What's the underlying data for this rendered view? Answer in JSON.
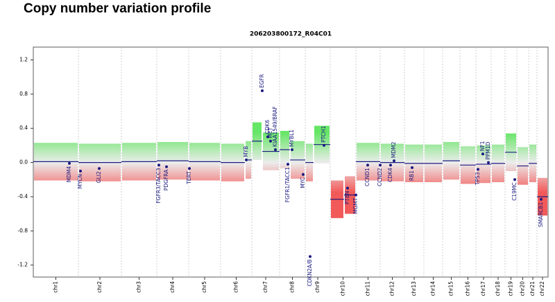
{
  "page_title": "Copy number variation profile",
  "chart_data": {
    "type": "scatter",
    "title": "206203800172_R04C01",
    "xlim": [
      0,
      742
    ],
    "ylim": [
      -1.34,
      1.35
    ],
    "yticks": [
      -1.2,
      -0.8,
      -0.4,
      {
        "value": 0,
        "label": "0.0"
      },
      0.4,
      0.8,
      1.2
    ],
    "segment_color": "#1a1a80",
    "gain_color": "#33dd33",
    "loss_color": "#ee2222",
    "gene_color": "#1a1a80",
    "chromosomes": [
      {
        "name": "chr1",
        "start": 0,
        "end": 65
      },
      {
        "name": "chr2",
        "start": 65,
        "end": 127
      },
      {
        "name": "chr3",
        "start": 127,
        "end": 178
      },
      {
        "name": "chr4",
        "start": 178,
        "end": 224
      },
      {
        "name": "chr5",
        "start": 224,
        "end": 270
      },
      {
        "name": "chr6",
        "start": 270,
        "end": 315
      },
      {
        "name": "chr7",
        "start": 315,
        "end": 355
      },
      {
        "name": "chr8",
        "start": 355,
        "end": 392
      },
      {
        "name": "chr9",
        "start": 392,
        "end": 428
      },
      {
        "name": "chr10",
        "start": 428,
        "end": 465
      },
      {
        "name": "chr11",
        "start": 465,
        "end": 500
      },
      {
        "name": "chr12",
        "start": 500,
        "end": 535
      },
      {
        "name": "chr13",
        "start": 535,
        "end": 563
      },
      {
        "name": "chr14",
        "start": 563,
        "end": 590
      },
      {
        "name": "chr15",
        "start": 590,
        "end": 615
      },
      {
        "name": "chr16",
        "start": 615,
        "end": 638
      },
      {
        "name": "chr17",
        "start": 638,
        "end": 660
      },
      {
        "name": "chr18",
        "start": 660,
        "end": 680
      },
      {
        "name": "chr19",
        "start": 680,
        "end": 697
      },
      {
        "name": "chr20",
        "start": 697,
        "end": 714
      },
      {
        "name": "chr21",
        "start": 714,
        "end": 726
      },
      {
        "name": "chr22",
        "start": 726,
        "end": 742
      }
    ],
    "segments": [
      [
        0,
        65,
        0.01
      ],
      [
        65,
        127,
        0.0
      ],
      [
        127,
        178,
        0.01
      ],
      [
        178,
        224,
        0.02
      ],
      [
        224,
        270,
        0.01
      ],
      [
        270,
        305,
        0.0
      ],
      [
        305,
        315,
        0.03
      ],
      [
        315,
        330,
        0.25
      ],
      [
        330,
        355,
        0.13
      ],
      [
        355,
        370,
        0.15
      ],
      [
        370,
        392,
        0.03
      ],
      [
        392,
        404,
        0.0
      ],
      [
        404,
        428,
        0.21
      ],
      [
        428,
        448,
        -0.43
      ],
      [
        448,
        465,
        -0.38
      ],
      [
        465,
        500,
        0.01
      ],
      [
        500,
        535,
        0.0
      ],
      [
        535,
        563,
        -0.01
      ],
      [
        563,
        590,
        -0.01
      ],
      [
        590,
        615,
        0.02
      ],
      [
        615,
        638,
        -0.03
      ],
      [
        638,
        660,
        -0.02
      ],
      [
        660,
        680,
        -0.01
      ],
      [
        680,
        697,
        0.12
      ],
      [
        697,
        714,
        -0.04
      ],
      [
        714,
        726,
        -0.01
      ],
      [
        726,
        742,
        -0.4
      ]
    ],
    "genes": [
      {
        "name": "MDM4",
        "x": 52,
        "y": -0.01,
        "side": "below"
      },
      {
        "name": "MYCN",
        "x": 68,
        "y": -0.1,
        "side": "below"
      },
      {
        "name": "GLI2",
        "x": 95,
        "y": -0.07,
        "side": "below"
      },
      {
        "name": "FGFR3/TACC3",
        "x": 181,
        "y": -0.03,
        "side": "below"
      },
      {
        "name": "PDGFRA",
        "x": 192,
        "y": -0.05,
        "side": "below"
      },
      {
        "name": "TERT",
        "x": 225,
        "y": -0.07,
        "side": "below"
      },
      {
        "name": "MYB",
        "x": 307,
        "y": 0.03,
        "side": "above"
      },
      {
        "name": "EGFR",
        "x": 330,
        "y": 0.84,
        "side": "above"
      },
      {
        "name": "CDK6",
        "x": 338,
        "y": 0.3,
        "side": "above"
      },
      {
        "name": "MET",
        "x": 342,
        "y": 0.25,
        "side": "above"
      },
      {
        "name": "KIAA1549/BRAF",
        "x": 349,
        "y": 0.15,
        "side": "above"
      },
      {
        "name": "FGFR1/TACC1",
        "x": 367,
        "y": -0.02,
        "side": "below"
      },
      {
        "name": "MYBL1",
        "x": 373,
        "y": 0.15,
        "side": "above"
      },
      {
        "name": "MYC",
        "x": 389,
        "y": -0.14,
        "side": "below"
      },
      {
        "name": "CDKN2A/B",
        "x": 399,
        "y": -1.1,
        "side": "below"
      },
      {
        "name": "PTCH1",
        "x": 419,
        "y": 0.2,
        "side": "above"
      },
      {
        "name": "PTEN",
        "x": 453,
        "y": -0.3,
        "side": "below"
      },
      {
        "name": "MGMT",
        "x": 465,
        "y": -0.38,
        "side": "below"
      },
      {
        "name": "CCND1",
        "x": 482,
        "y": -0.03,
        "side": "below"
      },
      {
        "name": "CCND2",
        "x": 500,
        "y": -0.03,
        "side": "below"
      },
      {
        "name": "CDK4",
        "x": 515,
        "y": -0.03,
        "side": "below"
      },
      {
        "name": "MDM2",
        "x": 520,
        "y": 0.02,
        "side": "above"
      },
      {
        "name": "RB1",
        "x": 546,
        "y": -0.06,
        "side": "below"
      },
      {
        "name": "TP53",
        "x": 641,
        "y": -0.08,
        "side": "below"
      },
      {
        "name": "NF1",
        "x": 648,
        "y": 0.1,
        "side": "above"
      },
      {
        "name": "PPM1D",
        "x": 656,
        "y": 0.0,
        "side": "above"
      },
      {
        "name": "C19MC",
        "x": 694,
        "y": -0.2,
        "side": "below"
      },
      {
        "name": "SMARCB1",
        "x": 732,
        "y": -0.43,
        "side": "below"
      }
    ]
  }
}
